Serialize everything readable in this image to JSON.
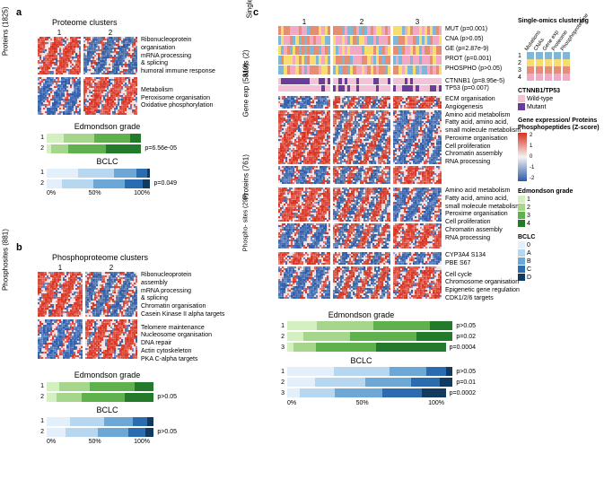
{
  "colors": {
    "hm_high": "#d7301f",
    "hm_mid": "#f4f4f4",
    "hm_low": "#2c5aa6",
    "edmondson": [
      "#d4f0c0",
      "#a5d68c",
      "#5fb14e",
      "#237a2b"
    ],
    "bclc": [
      "#e3f0fb",
      "#b7d6f0",
      "#6ca7d5",
      "#2b6cb0",
      "#103a60"
    ],
    "single_omics": [
      "#7db8da",
      "#f7dc6f",
      "#e58e73",
      "#f1a9c4"
    ],
    "mut_wt": "#f4c2d7",
    "mut_mut": "#6a3d9a"
  },
  "panel_a": {
    "label": "a",
    "title": "Proteome clusters",
    "ylabel": "Proteins (1825)",
    "clusters": [
      "1",
      "2"
    ],
    "annot1": [
      "Ribonucleoprotein",
      "organisation",
      "mRNA processing",
      "& splicing",
      "humoral immune response"
    ],
    "annot2": [
      "Metabolism",
      "Peroxisome organisation",
      "Oxidative phosphorylation"
    ],
    "edmondson_title": "Edmondson grade",
    "bclc_title": "BCLC",
    "ed_rows": [
      {
        "label": "1",
        "segs": [
          0.18,
          0.32,
          0.38,
          0.12
        ]
      },
      {
        "label": "2",
        "segs": [
          0.05,
          0.18,
          0.4,
          0.37
        ]
      }
    ],
    "ed_p": "p=6.56e-05",
    "bclc_rows": [
      {
        "label": "1",
        "segs": [
          0.3,
          0.35,
          0.22,
          0.1,
          0.03
        ]
      },
      {
        "label": "2",
        "segs": [
          0.15,
          0.3,
          0.3,
          0.18,
          0.07
        ]
      }
    ],
    "bclc_p": "p=0.049",
    "axis": [
      "0%",
      "50%",
      "100%"
    ]
  },
  "panel_b": {
    "label": "b",
    "title": "Phosphoproteome clusters",
    "ylabel": "Phosphosites (881)",
    "clusters": [
      "1",
      "2"
    ],
    "annot1": [
      "Ribonucleoprotein",
      "assembly",
      "mRNA processing",
      "& splicing",
      "Chromatin organisation",
      "Casein Kinase II alpha targets"
    ],
    "annot2": [
      "Telomere maintenance",
      "Nucleosome organisation",
      "DNA repair",
      "Actin cytoskeleton",
      "PKA C-alpha targets"
    ],
    "edmondson_title": "Edmondson grade",
    "bclc_title": "BCLC",
    "ed_rows": [
      {
        "label": "1",
        "segs": [
          0.12,
          0.28,
          0.42,
          0.18
        ]
      },
      {
        "label": "2",
        "segs": [
          0.09,
          0.24,
          0.4,
          0.27
        ]
      }
    ],
    "ed_p": "p>0.05",
    "bclc_rows": [
      {
        "label": "1",
        "segs": [
          0.22,
          0.32,
          0.26,
          0.14,
          0.06
        ]
      },
      {
        "label": "2",
        "segs": [
          0.18,
          0.3,
          0.28,
          0.16,
          0.08
        ]
      }
    ],
    "bclc_p": "p>0.05",
    "axis": [
      "0%",
      "50%",
      "100%"
    ]
  },
  "panel_c": {
    "label": "c",
    "clusters": [
      "1",
      "2",
      "3"
    ],
    "single_omics_label": "Single-omics clustering",
    "muts_label": "Muts (2)",
    "track_labels": [
      "MUT (p=0.001)",
      "CNA (p>0.05)",
      "GE (p=2.87e-9)",
      "PROT (p=0.001)",
      "PHOSPHO (p>0.05)"
    ],
    "mut_labels": [
      "CTNNB1 (p=8.95e-5)",
      "TP53 (p=0.007)"
    ],
    "ge_label": "Gene exp (5819)",
    "ge_annot": [
      "ECM organisation",
      "Angiogenesis",
      "Amino acid metabolism",
      "Fatty acid, amino acid,",
      "small molecule metabolism",
      "Peroxime organisation",
      "Cell proliferation",
      "Chromatin assembly",
      "RNA processing"
    ],
    "prot_label": "Proteins (761)",
    "prot_annot": [
      "Amino acid metabolism",
      "Fatty acid, amino acid,",
      "small molecule metabolism",
      "Peroxime organisation",
      "Cell proliferation",
      "Chromatin assembly",
      "RNA processing"
    ],
    "phos_label": "Phospho- sites (296)",
    "phos_annot1": [
      "CYP3A4 S134",
      "PBE S67"
    ],
    "phos_annot2": [
      "Cell cycle",
      "Chromosome organisation",
      "Epigenetic gene regulation",
      "CDK1/2/6 targets"
    ],
    "edmondson_title": "Edmondson grade",
    "bclc_title": "BCLC",
    "ed_rows": [
      {
        "label": "1",
        "segs": [
          0.18,
          0.34,
          0.34,
          0.14
        ],
        "p": "p>0.05"
      },
      {
        "label": "2",
        "segs": [
          0.1,
          0.28,
          0.4,
          0.22
        ],
        "p": "p=0.02"
      },
      {
        "label": "3",
        "segs": [
          0.04,
          0.14,
          0.38,
          0.44
        ],
        "p": "p=0.0004"
      }
    ],
    "bclc_rows": [
      {
        "label": "1",
        "segs": [
          0.28,
          0.34,
          0.22,
          0.12,
          0.04
        ],
        "p": "p>0.05"
      },
      {
        "label": "2",
        "segs": [
          0.17,
          0.3,
          0.28,
          0.17,
          0.08
        ],
        "p": "p=0.01"
      },
      {
        "label": "3",
        "segs": [
          0.08,
          0.22,
          0.3,
          0.25,
          0.15
        ],
        "p": "p=0.0002"
      }
    ],
    "axis": [
      "0%",
      "50%",
      "100%"
    ]
  },
  "legends": {
    "single_omics_title": "Single-omics clustering",
    "single_omics_items": [
      "1",
      "2",
      "3",
      "4"
    ],
    "single_omics_cols": [
      "Mutations",
      "CNAs",
      "Gene exp",
      "Proteome",
      "Phosphoproteome"
    ],
    "ctnnb1_title": "CTNNB1/TP53",
    "ctnnb1_items": [
      "Wild-type",
      "Mutant"
    ],
    "z_title": "Gene expression/ Proteins Phosphopeptides (Z-score)",
    "z_ticks": [
      "2",
      "1",
      "0",
      "-1",
      "-2"
    ],
    "ed_title": "Edmondson grade",
    "ed_items": [
      "1",
      "2",
      "3",
      "4"
    ],
    "bclc_title": "BCLC",
    "bclc_items": [
      "0",
      "A",
      "B",
      "C",
      "D"
    ]
  }
}
